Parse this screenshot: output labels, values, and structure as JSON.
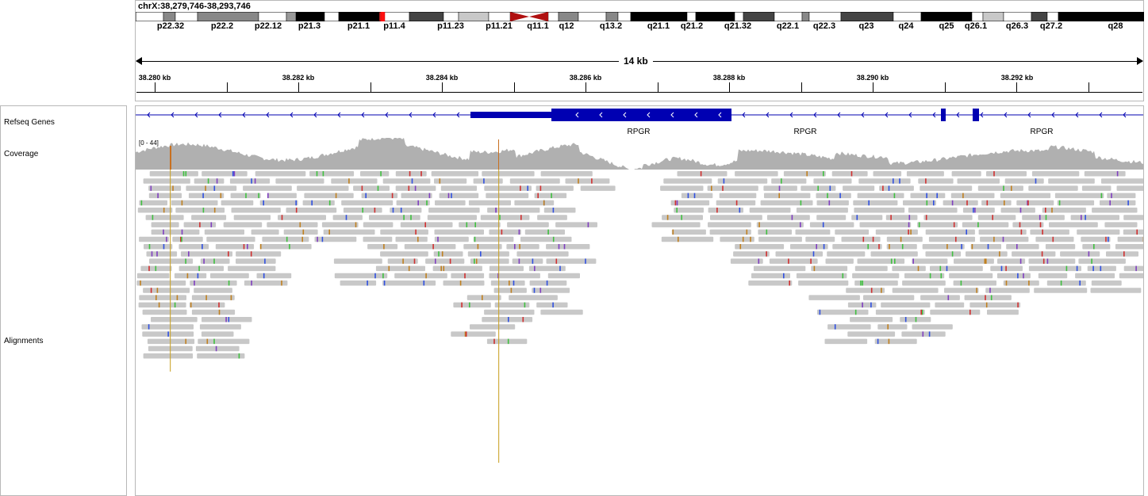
{
  "locus": "chrX:38,279,746-38,293,746",
  "span_label": "14 kb",
  "ideogram_bands": [
    "p22.32",
    "p22.2",
    "p22.12",
    "p21.3",
    "p21.1",
    "p11.4",
    "p11.23",
    "p11.21",
    "q11.1",
    "q12",
    "q13.2",
    "q21.1",
    "q21.2",
    "q21.32",
    "q22.1",
    "q22.3",
    "q23",
    "q24",
    "q25",
    "q26.1",
    "q26.3",
    "q27.2",
    "q28"
  ],
  "ruler_ticks": [
    "38.280 kb",
    "38.282 kb",
    "38.284 kb",
    "38.286 kb",
    "38.288 kb",
    "38.290 kb",
    "38.292 kb"
  ],
  "tracks": {
    "refseq": "Refseq Genes",
    "coverage": "Coverage",
    "alignments": "Alignments"
  },
  "coverage_range": "[0 - 44]",
  "gene_labels": [
    "RPGR",
    "RPGR",
    "RPGR"
  ],
  "colors": {
    "gene": "#0000b2",
    "read": "#c8c8c8",
    "coverage": "#b0b0b0",
    "centromere": "#b01010",
    "highlight": "#ff1010"
  }
}
